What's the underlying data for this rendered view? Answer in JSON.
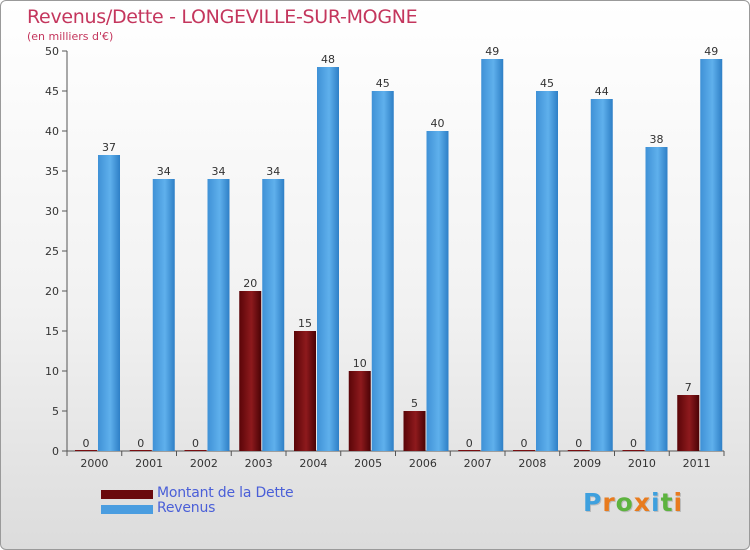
{
  "chart_data": {
    "type": "bar",
    "title": "Revenus/Dette - LONGEVILLE-SUR-MOGNE",
    "subtitle": "(en milliers d'€)",
    "categories": [
      "2000",
      "2001",
      "2002",
      "2003",
      "2004",
      "2005",
      "2006",
      "2007",
      "2008",
      "2009",
      "2010",
      "2011"
    ],
    "series": [
      {
        "name": "Montant de la Dette",
        "color": "#7a0f12",
        "values": [
          0,
          0,
          0,
          20,
          15,
          10,
          5,
          0,
          0,
          0,
          0,
          7
        ]
      },
      {
        "name": "Revenus",
        "color": "#4a9de0",
        "values": [
          37,
          34,
          34,
          34,
          48,
          45,
          40,
          49,
          45,
          44,
          38,
          49
        ]
      }
    ],
    "ylim": [
      0,
      50
    ],
    "yticks": [
      0,
      5,
      10,
      15,
      20,
      25,
      30,
      35,
      40,
      45,
      50
    ],
    "xlabel": "",
    "ylabel": "",
    "grid": false,
    "legend_position": "bottom-left"
  },
  "logo": {
    "text": "Proxiti",
    "letters": [
      "P",
      "r",
      "o",
      "x",
      "i",
      "t",
      "i"
    ],
    "colors": [
      "#3ea0de",
      "#e87b1e",
      "#5db33f",
      "#e87b1e",
      "#3ea0de",
      "#5db33f",
      "#e87b1e"
    ]
  }
}
